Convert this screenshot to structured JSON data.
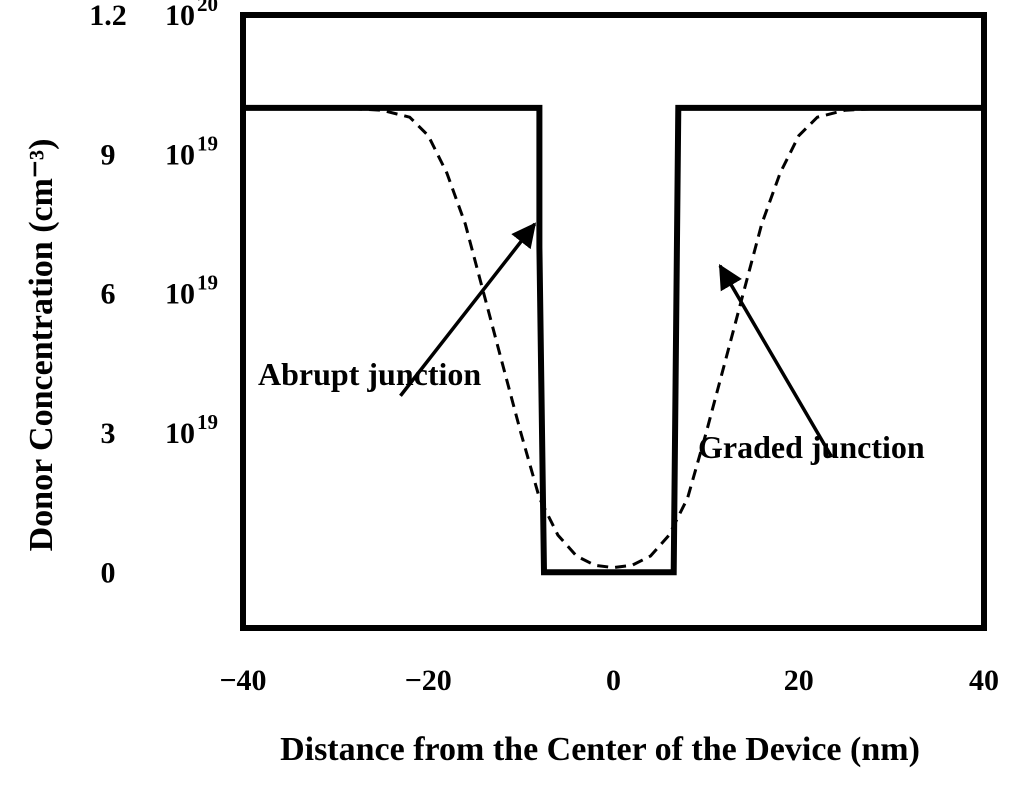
{
  "chart_data": {
    "type": "line",
    "xlabel": "Distance from the Center of the Device (nm)",
    "ylabel": "Donor Concentration (cm⁻³)",
    "xlim": [
      -40,
      40
    ],
    "ylim": [
      -1.2e+19,
      1.2e+20
    ],
    "x_ticks": [
      {
        "value": -40,
        "label": "−40"
      },
      {
        "value": -20,
        "label": "−20"
      },
      {
        "value": 0,
        "label": "0"
      },
      {
        "value": 20,
        "label": "20"
      },
      {
        "value": 40,
        "label": "40"
      }
    ],
    "y_ticks": [
      {
        "value": 1.2e+20,
        "mantissa": "1.2",
        "base": "10",
        "exp": "20"
      },
      {
        "value": 9e+19,
        "mantissa": "9",
        "base": "10",
        "exp": "19"
      },
      {
        "value": 6e+19,
        "mantissa": "6",
        "base": "10",
        "exp": "19"
      },
      {
        "value": 3e+19,
        "mantissa": "3",
        "base": "10",
        "exp": "19"
      },
      {
        "value": 0,
        "mantissa": "0",
        "base": "",
        "exp": ""
      }
    ],
    "grid": false,
    "series": [
      {
        "name": "Abrupt junction",
        "style": "solid",
        "color": "#000000",
        "x": [
          -40,
          -8,
          -8,
          -7.5,
          6.5,
          7,
          40
        ],
        "y": [
          1e+20,
          1e+20,
          7e+19,
          0,
          0,
          1e+20,
          1e+20
        ]
      },
      {
        "name": "Graded junction",
        "style": "dashed",
        "color": "#000000",
        "x": [
          -40,
          -30,
          -25,
          -22,
          -20,
          -18,
          -16,
          -14,
          -12,
          -10,
          -8,
          -6,
          -4,
          -2,
          0,
          2,
          4,
          6,
          8,
          10,
          12,
          14,
          16,
          18,
          20,
          22,
          25,
          30,
          40
        ],
        "y": [
          1e+20,
          1e+20,
          9.95e+19,
          9.8e+19,
          9.4e+19,
          8.6e+19,
          7.5e+19,
          6e+19,
          4.5e+19,
          3e+19,
          1.6e+19,
          8e+18,
          3.5e+18,
          1.5e+18,
          1e+18,
          1.5e+18,
          3.5e+18,
          8e+18,
          1.6e+19,
          3e+19,
          4.5e+19,
          6e+19,
          7.5e+19,
          8.6e+19,
          9.4e+19,
          9.8e+19,
          9.95e+19,
          1e+20,
          1e+20
        ]
      }
    ],
    "annotations": [
      {
        "text": "Abrupt junction",
        "arrow_to": [
          -8.5,
          7.5e+19
        ],
        "arrow_from": [
          -23,
          3.8e+19
        ]
      },
      {
        "text": "Graded junction",
        "arrow_to": [
          11.5,
          6.6e+19
        ],
        "arrow_from": [
          23.5,
          2.5e+19
        ]
      }
    ]
  }
}
